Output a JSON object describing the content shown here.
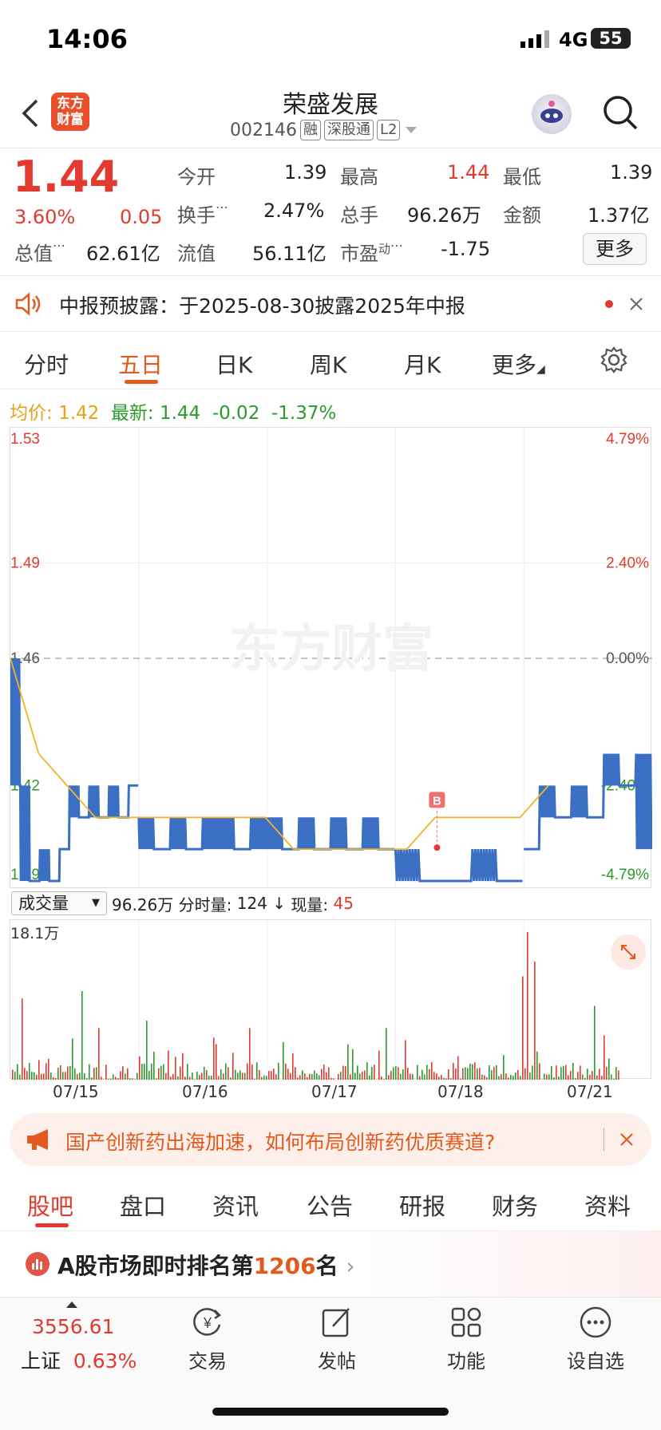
{
  "status_bar": {
    "time": "14:06",
    "network": "4G",
    "battery": "55"
  },
  "header": {
    "title": "荣盛发展",
    "code": "002146",
    "tags": [
      "融",
      "深股通",
      "L2"
    ],
    "logo_text": "东方财富"
  },
  "quote": {
    "price": "1.44",
    "change_pct": "3.60%",
    "change": "0.05",
    "fields": {
      "open_label": "今开",
      "open": "1.39",
      "high_label": "最高",
      "high": "1.44",
      "low_label": "最低",
      "low": "1.39",
      "turnover_label": "换手",
      "turnover": "2.47%",
      "volume_label": "总手",
      "volume": "96.26万",
      "amount_label": "金额",
      "amount": "1.37亿",
      "mktcap_label": "总值",
      "mktcap": "62.61亿",
      "float_label": "流值",
      "float": "56.11亿",
      "pe_label": "市盈",
      "pe_sup": "动",
      "pe": "-1.75"
    },
    "more_label": "更多"
  },
  "notice": {
    "text": "中报预披露：于2025-08-30披露2025年中报"
  },
  "chart_tabs": {
    "items": [
      "分时",
      "五日",
      "日K",
      "周K",
      "月K",
      "更多"
    ],
    "active": "五日"
  },
  "info_line": {
    "avg_label": "均价:",
    "avg": "1.42",
    "latest_label": "最新:",
    "latest": "1.44",
    "chg": "-0.02",
    "chg_pct": "-1.37%"
  },
  "chart_data": {
    "type": "line",
    "watermark": "东方财富",
    "y_labels_left": [
      "1.53",
      "1.49",
      "1.46",
      "1.42",
      "1.39"
    ],
    "y_labels_right": [
      "4.79%",
      "2.40%",
      "0.00%",
      "-2.40%",
      "-4.79%"
    ],
    "ylim": [
      1.39,
      1.53
    ],
    "x_labels": [
      "07/15",
      "07/16",
      "07/17",
      "07/18",
      "07/21"
    ],
    "marker": "B",
    "series": [
      {
        "type": "price",
        "color": "#3a6fc4"
      },
      {
        "type": "avg",
        "color": "#f0b42a"
      }
    ],
    "price_segments": [
      {
        "day": 0,
        "values": [
          1.46,
          1.42,
          1.39,
          1.4,
          1.39,
          1.4,
          1.42,
          1.41,
          1.42,
          1.41,
          1.42,
          1.41,
          1.42
        ]
      },
      {
        "day": 1,
        "values": [
          1.41,
          1.4,
          1.41,
          1.4,
          1.41,
          1.41,
          1.4,
          1.41
        ]
      },
      {
        "day": 2,
        "values": [
          1.41,
          1.4,
          1.41,
          1.4,
          1.41,
          1.4,
          1.41,
          1.4
        ]
      },
      {
        "day": 3,
        "values": [
          1.4,
          1.39,
          1.39,
          1.4,
          1.39
        ]
      },
      {
        "day": 4,
        "values": [
          1.4,
          1.42,
          1.41,
          1.42,
          1.41,
          1.43,
          1.42,
          1.43
        ]
      }
    ],
    "avg_values": [
      1.46,
      1.43,
      1.42,
      1.41,
      1.41,
      1.41,
      1.41,
      1.41,
      1.41,
      1.41,
      1.4,
      1.4,
      1.4,
      1.4,
      1.4,
      1.41,
      1.41,
      1.41,
      1.41,
      1.42
    ]
  },
  "volume": {
    "selector": "成交量",
    "total": "96.26万",
    "tick_label": "分时量:",
    "tick": "124",
    "now_label": "现量:",
    "now": "45",
    "max_label": "18.1万"
  },
  "banner": {
    "text": "国产创新药出海加速，如何布局创新药优质赛道?"
  },
  "bottom_tabs": {
    "items": [
      "股吧",
      "盘口",
      "资讯",
      "公告",
      "研报",
      "财务",
      "资料"
    ]
  },
  "rank": {
    "prefix": "A股市场即时排名第",
    "num": "1206",
    "suffix": "名"
  },
  "nav": {
    "index_value": "3556.61",
    "index_name": "上证",
    "index_pct": "0.63%",
    "items": [
      {
        "label": "交易",
        "icon": "trade-icon"
      },
      {
        "label": "发帖",
        "icon": "post-icon"
      },
      {
        "label": "功能",
        "icon": "apps-icon"
      },
      {
        "label": "设自选",
        "icon": "more-icon"
      }
    ]
  }
}
